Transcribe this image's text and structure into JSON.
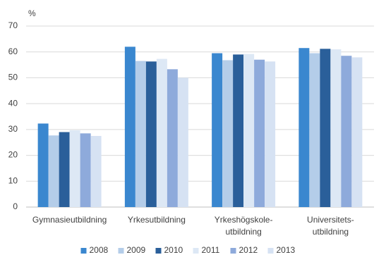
{
  "chart_data": {
    "type": "bar",
    "y_unit": "%",
    "categories": [
      "Gymnasieutbildning",
      "Yrkesutbildning",
      "Yrkeshögskole-\nutbildning",
      "Universitets-\nutbildning"
    ],
    "series": [
      {
        "name": "2008",
        "color": "#3a87cf",
        "values": [
          32.3,
          62,
          59.5,
          61.5
        ]
      },
      {
        "name": "2009",
        "color": "#b4cde9",
        "values": [
          27.7,
          56.5,
          56.8,
          59.5
        ]
      },
      {
        "name": "2010",
        "color": "#2a5f9a",
        "values": [
          29,
          56.3,
          59,
          61.2
        ]
      },
      {
        "name": "2011",
        "color": "#dde8f5",
        "values": [
          29.7,
          57.3,
          59.2,
          61
        ]
      },
      {
        "name": "2012",
        "color": "#8eaadb",
        "values": [
          28.5,
          53.3,
          57,
          58.5
        ]
      },
      {
        "name": "2013",
        "color": "#d6e2f3",
        "values": [
          27.5,
          50,
          56.3,
          57.9
        ]
      }
    ],
    "ylim": [
      0,
      70
    ],
    "yticks": [
      0,
      10,
      20,
      30,
      40,
      50,
      60,
      70
    ],
    "grid": true,
    "legend": "bottom"
  }
}
